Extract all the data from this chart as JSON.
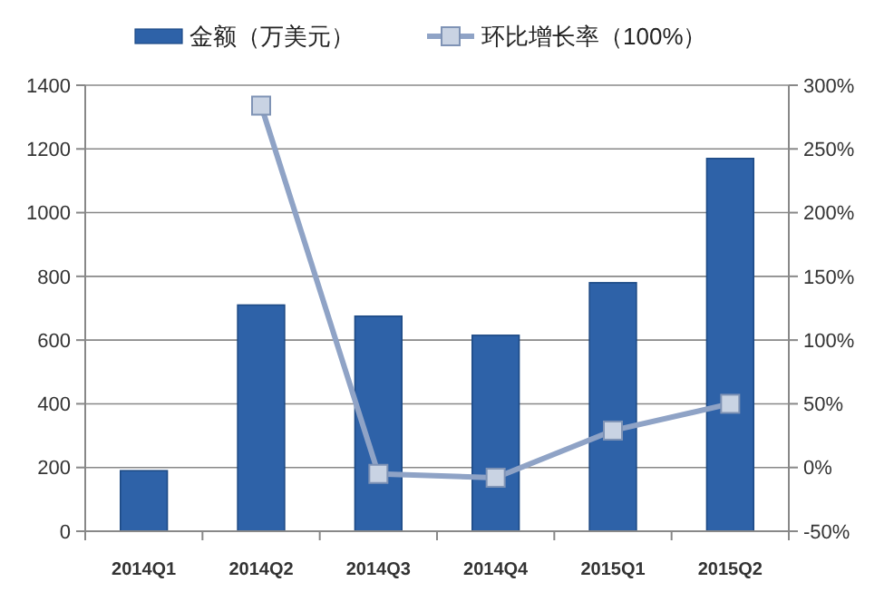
{
  "chart_data": {
    "type": "bar",
    "categories": [
      "2014Q1",
      "2014Q2",
      "2014Q3",
      "2014Q4",
      "2015Q1",
      "2015Q2"
    ],
    "series": [
      {
        "name": "金额（万美元）",
        "color": "#2e62a8",
        "values": [
          190,
          710,
          675,
          615,
          780,
          1170
        ]
      },
      {
        "name": "环比增长率（100%）",
        "type": "line",
        "axis": "y2",
        "color": "#8fa3c6",
        "marker": "square",
        "values": [
          null,
          284,
          -5,
          -8,
          29,
          50
        ]
      }
    ],
    "ylim": [
      0,
      1400
    ],
    "yticks": [
      0,
      200,
      400,
      600,
      800,
      1000,
      1200,
      1400
    ],
    "y2lim": [
      -50,
      300
    ],
    "y2ticks": [
      {
        "value": -50,
        "label": "-50%"
      },
      {
        "value": 0,
        "label": "0%"
      },
      {
        "value": 50,
        "label": "50%"
      },
      {
        "value": 100,
        "label": "100%"
      },
      {
        "value": 150,
        "label": "150%"
      },
      {
        "value": 200,
        "label": "200%"
      },
      {
        "value": 250,
        "label": "250%"
      },
      {
        "value": 300,
        "label": "300%"
      }
    ],
    "grid": "y",
    "legend": "top"
  }
}
